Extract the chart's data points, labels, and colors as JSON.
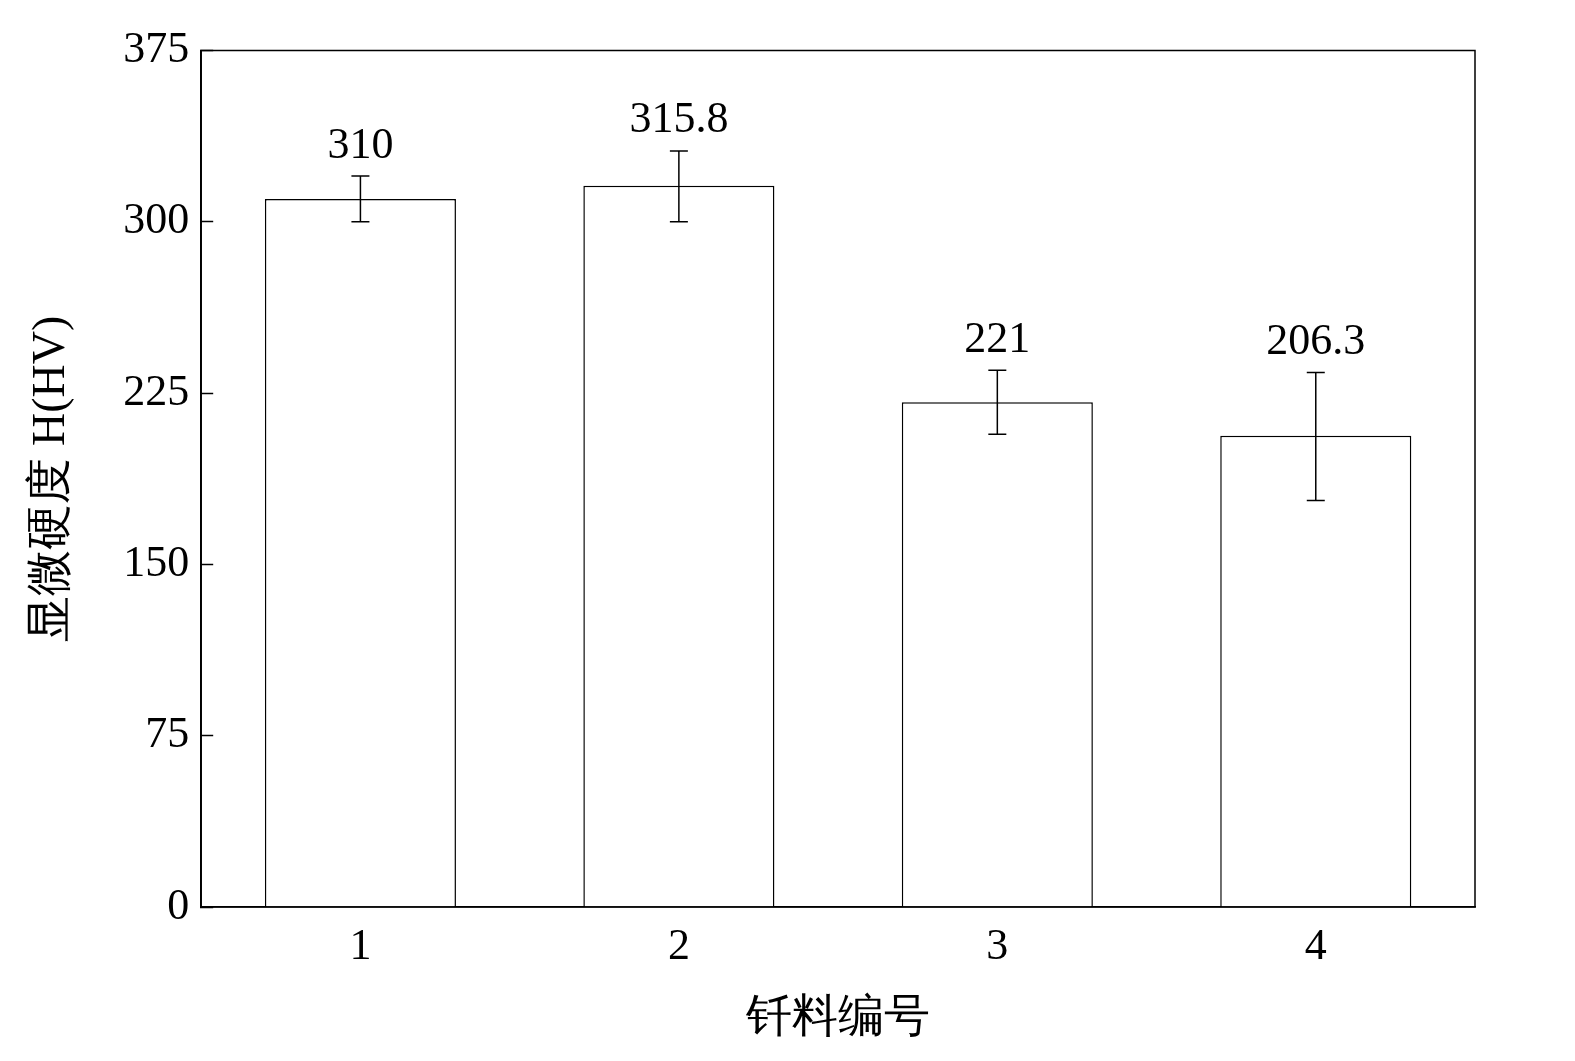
{
  "chart_data": {
    "type": "bar",
    "xlabel": "钎料编号",
    "ylabel": "显微硬度 H(HV)",
    "categories": [
      "1",
      "2",
      "3",
      "4"
    ],
    "values": [
      310,
      315.8,
      221,
      206.3
    ],
    "errors": [
      [
        300,
        320
      ],
      [
        300,
        331
      ],
      [
        207,
        235
      ],
      [
        178,
        234
      ]
    ],
    "color": "#ffffff",
    "ylim": [
      0,
      375
    ],
    "yticks": [
      0,
      75,
      150,
      225,
      300,
      375
    ],
    "data_labels": true,
    "grid": false,
    "legend": false
  }
}
